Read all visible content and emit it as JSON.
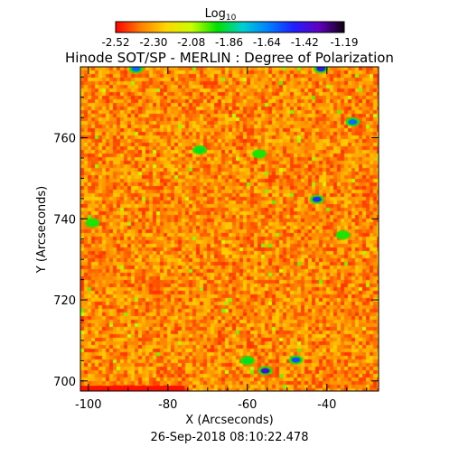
{
  "chart_data": {
    "type": "heatmap",
    "title": "Hinode SOT/SP - MERLIN : Degree of Polarization",
    "subtitle": "26-Sep-2018 08:10:22.478",
    "xlabel": "X (Arcseconds)",
    "ylabel": "Y (Arcseconds)",
    "xlim": [
      -102,
      -27
    ],
    "ylim": [
      697.5,
      777.5
    ],
    "x_ticks": [
      -100,
      -80,
      -60,
      -40
    ],
    "y_ticks": [
      700,
      720,
      740,
      760
    ],
    "colorbar": {
      "label_base": "Log",
      "label_sub": "10",
      "range": [
        -2.52,
        -1.19
      ],
      "ticks": [
        "-2.52",
        "-2.30",
        "-2.08",
        "-1.86",
        "-1.64",
        "-1.42",
        "-1.19"
      ],
      "colormap": [
        "#ff0000",
        "#ff8000",
        "#ffd800",
        "#c8ff00",
        "#00e000",
        "#00d0d0",
        "#0080ff",
        "#2020ff",
        "#6000c0",
        "#100010"
      ]
    },
    "background_field_value": -2.35,
    "features": [
      {
        "x": -55.5,
        "y": 702.5,
        "value": -1.4,
        "kind": "dark-blue patch"
      },
      {
        "x": -42.5,
        "y": 744.8,
        "value": -1.5,
        "kind": "blue patch"
      },
      {
        "x": -47.8,
        "y": 705.2,
        "value": -1.55,
        "kind": "blue patch"
      },
      {
        "x": -33.5,
        "y": 763.9,
        "value": -1.6,
        "kind": "blue-green patch"
      },
      {
        "x": -41.5,
        "y": 777.0,
        "value": -1.45,
        "kind": "blue patch at top edge"
      },
      {
        "x": -88.0,
        "y": 777.0,
        "value": -1.6,
        "kind": "blue patch at top edge"
      },
      {
        "x": -72.0,
        "y": 757.0,
        "value": -1.9,
        "kind": "green patch"
      },
      {
        "x": -57.0,
        "y": 756.0,
        "value": -1.95,
        "kind": "green patch"
      },
      {
        "x": -60.0,
        "y": 705.0,
        "value": -1.9,
        "kind": "green patch"
      },
      {
        "x": -99.0,
        "y": 739.0,
        "value": -1.95,
        "kind": "green patch"
      },
      {
        "x": -36.0,
        "y": 736.0,
        "value": -1.95,
        "kind": "green patch"
      }
    ]
  }
}
